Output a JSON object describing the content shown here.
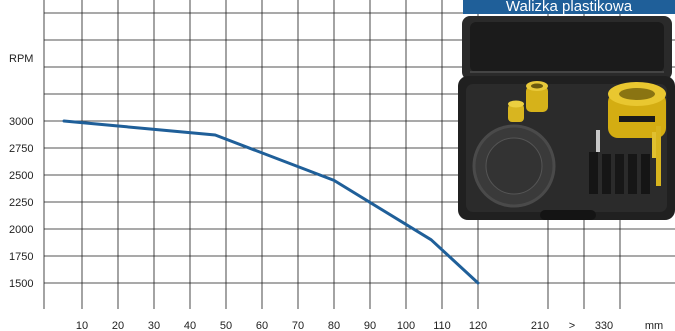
{
  "chart_data": {
    "type": "line",
    "title": "",
    "ylabel": "RPM",
    "xlabel": "mm",
    "ylim": [
      1500,
      3000
    ],
    "yticks": [
      "3000",
      "2750",
      "2500",
      "2250",
      "2000",
      "1750",
      "1500"
    ],
    "xticks": [
      "10",
      "20",
      "30",
      "40",
      "50",
      "60",
      "70",
      "80",
      "90",
      "100",
      "110",
      "120",
      "210",
      ">",
      "330",
      "mm"
    ],
    "grid": true,
    "series": [
      {
        "x": [
          5,
          47,
          80,
          107,
          120
        ],
        "y": [
          3000,
          2870,
          2450,
          1900,
          1500
        ]
      }
    ]
  },
  "colors": {
    "line": "#1f5f99",
    "grid": "#1a1a1a",
    "badge": "#1f5f99"
  },
  "badge": {
    "label": "Walizka plastikowa"
  },
  "photo": {
    "icon": "plastic-case-hole-saw-kit-photo"
  }
}
